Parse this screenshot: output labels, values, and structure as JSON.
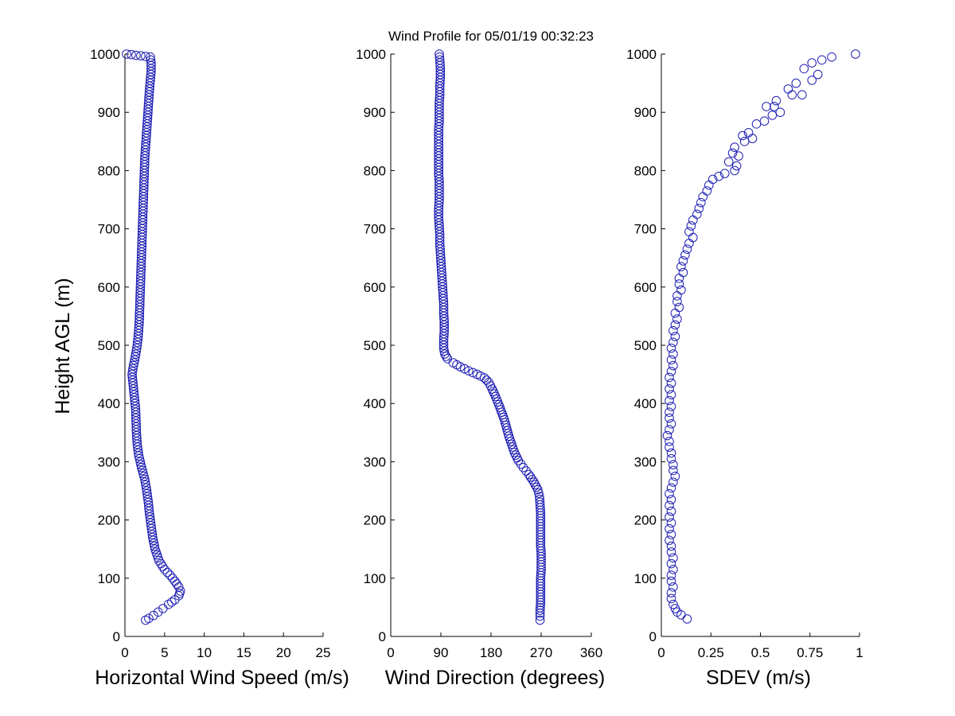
{
  "figure_title": "Wind Profile for  05/01/19 00:32:23",
  "ylabel": "Height AGL (m)",
  "colors": {
    "marker": "#1f1fb4",
    "axis": "#000000"
  },
  "chart_data": [
    {
      "type": "scatter",
      "xlabel": "Horizontal Wind Speed (m/s)",
      "ylabel": "Height AGL (m)",
      "xlim": [
        0,
        25
      ],
      "ylim": [
        0,
        1000
      ],
      "xticks": [
        "0",
        "5",
        "10",
        "15",
        "20",
        "25"
      ],
      "yticks": [
        "0",
        "100",
        "200",
        "300",
        "400",
        "500",
        "600",
        "700",
        "800",
        "900",
        "1000"
      ],
      "grid": false,
      "marker": "open-circle",
      "profile": [
        [
          0.2,
          1000
        ],
        [
          3.2,
          995
        ],
        [
          3.3,
          985
        ],
        [
          3.3,
          970
        ],
        [
          3.2,
          955
        ],
        [
          3.1,
          940
        ],
        [
          3.0,
          920
        ],
        [
          2.9,
          900
        ],
        [
          2.8,
          880
        ],
        [
          2.7,
          860
        ],
        [
          2.6,
          840
        ],
        [
          2.5,
          820
        ],
        [
          2.45,
          800
        ],
        [
          2.4,
          780
        ],
        [
          2.35,
          760
        ],
        [
          2.3,
          740
        ],
        [
          2.25,
          720
        ],
        [
          2.2,
          700
        ],
        [
          2.15,
          680
        ],
        [
          2.1,
          660
        ],
        [
          2.05,
          640
        ],
        [
          2.0,
          620
        ],
        [
          1.95,
          600
        ],
        [
          1.9,
          580
        ],
        [
          1.85,
          560
        ],
        [
          1.8,
          540
        ],
        [
          1.7,
          520
        ],
        [
          1.55,
          500
        ],
        [
          1.3,
          480
        ],
        [
          1.0,
          460
        ],
        [
          0.9,
          450
        ],
        [
          1.05,
          430
        ],
        [
          1.2,
          410
        ],
        [
          1.35,
          390
        ],
        [
          1.4,
          370
        ],
        [
          1.45,
          350
        ],
        [
          1.55,
          330
        ],
        [
          1.75,
          310
        ],
        [
          2.1,
          290
        ],
        [
          2.5,
          270
        ],
        [
          2.75,
          250
        ],
        [
          2.95,
          230
        ],
        [
          3.1,
          210
        ],
        [
          3.3,
          190
        ],
        [
          3.5,
          170
        ],
        [
          3.8,
          150
        ],
        [
          4.3,
          130
        ],
        [
          5.0,
          115
        ],
        [
          5.7,
          105
        ],
        [
          6.3,
          95
        ],
        [
          6.8,
          85
        ],
        [
          7.0,
          78
        ],
        [
          6.8,
          70
        ],
        [
          6.3,
          63
        ],
        [
          5.5,
          55
        ],
        [
          4.8,
          48
        ],
        [
          4.2,
          42
        ],
        [
          3.6,
          36
        ],
        [
          3.0,
          31
        ],
        [
          2.6,
          28
        ]
      ]
    },
    {
      "type": "scatter",
      "xlabel": "Wind Direction (degrees)",
      "xlim": [
        0,
        360
      ],
      "ylim": [
        0,
        1000
      ],
      "xticks": [
        "0",
        "90",
        "180",
        "270",
        "360"
      ],
      "yticks": [
        "0",
        "100",
        "200",
        "300",
        "400",
        "500",
        "600",
        "700",
        "800",
        "900",
        "1000"
      ],
      "grid": false,
      "marker": "open-circle",
      "profile": [
        [
          87,
          1000
        ],
        [
          88,
          990
        ],
        [
          89,
          975
        ],
        [
          89,
          960
        ],
        [
          88,
          945
        ],
        [
          88,
          930
        ],
        [
          87,
          915
        ],
        [
          87,
          900
        ],
        [
          87,
          885
        ],
        [
          86,
          870
        ],
        [
          86,
          855
        ],
        [
          86,
          840
        ],
        [
          86,
          825
        ],
        [
          86,
          810
        ],
        [
          86,
          795
        ],
        [
          87,
          780
        ],
        [
          87,
          765
        ],
        [
          87,
          750
        ],
        [
          86,
          735
        ],
        [
          86,
          720
        ],
        [
          87,
          705
        ],
        [
          88,
          690
        ],
        [
          88,
          675
        ],
        [
          89,
          660
        ],
        [
          90,
          645
        ],
        [
          91,
          630
        ],
        [
          92,
          615
        ],
        [
          93,
          600
        ],
        [
          94,
          585
        ],
        [
          95,
          570
        ],
        [
          95,
          555
        ],
        [
          96,
          540
        ],
        [
          96,
          525
        ],
        [
          95,
          510
        ],
        [
          95,
          495
        ],
        [
          97,
          485
        ],
        [
          102,
          477
        ],
        [
          112,
          470
        ],
        [
          125,
          463
        ],
        [
          140,
          456
        ],
        [
          155,
          450
        ],
        [
          168,
          444
        ],
        [
          176,
          436
        ],
        [
          182,
          425
        ],
        [
          188,
          412
        ],
        [
          194,
          398
        ],
        [
          199,
          385
        ],
        [
          204,
          372
        ],
        [
          208,
          358
        ],
        [
          212,
          344
        ],
        [
          217,
          330
        ],
        [
          222,
          316
        ],
        [
          229,
          302
        ],
        [
          238,
          290
        ],
        [
          248,
          278
        ],
        [
          257,
          265
        ],
        [
          264,
          252
        ],
        [
          267,
          240
        ],
        [
          268,
          226
        ],
        [
          269,
          212
        ],
        [
          269,
          198
        ],
        [
          269,
          184
        ],
        [
          269,
          170
        ],
        [
          269,
          156
        ],
        [
          270,
          142
        ],
        [
          270,
          128
        ],
        [
          270,
          114
        ],
        [
          269,
          100
        ],
        [
          269,
          86
        ],
        [
          269,
          72
        ],
        [
          269,
          58
        ],
        [
          268,
          45
        ],
        [
          268,
          35
        ],
        [
          268,
          28
        ]
      ]
    },
    {
      "type": "scatter",
      "xlabel": "SDEV  (m/s)",
      "xlim": [
        0,
        1
      ],
      "ylim": [
        0,
        1000
      ],
      "xticks": [
        "0",
        "0.25",
        "0.5",
        "0.75",
        "1"
      ],
      "yticks": [
        "0",
        "100",
        "200",
        "300",
        "400",
        "500",
        "600",
        "700",
        "800",
        "900",
        "1000"
      ],
      "grid": false,
      "marker": "open-circle",
      "points": [
        [
          0.98,
          1000
        ],
        [
          0.86,
          995
        ],
        [
          0.81,
          990
        ],
        [
          0.76,
          985
        ],
        [
          0.72,
          975
        ],
        [
          0.79,
          965
        ],
        [
          0.76,
          955
        ],
        [
          0.68,
          950
        ],
        [
          0.64,
          940
        ],
        [
          0.66,
          930
        ],
        [
          0.71,
          930
        ],
        [
          0.58,
          920
        ],
        [
          0.53,
          910
        ],
        [
          0.57,
          910
        ],
        [
          0.6,
          900
        ],
        [
          0.56,
          895
        ],
        [
          0.52,
          885
        ],
        [
          0.48,
          880
        ],
        [
          0.44,
          865
        ],
        [
          0.41,
          860
        ],
        [
          0.46,
          855
        ],
        [
          0.42,
          850
        ],
        [
          0.37,
          840
        ],
        [
          0.36,
          830
        ],
        [
          0.39,
          825
        ],
        [
          0.34,
          815
        ],
        [
          0.38,
          808
        ],
        [
          0.37,
          800
        ],
        [
          0.32,
          795
        ],
        [
          0.29,
          790
        ],
        [
          0.26,
          785
        ],
        [
          0.24,
          775
        ],
        [
          0.23,
          765
        ],
        [
          0.21,
          755
        ],
        [
          0.2,
          745
        ],
        [
          0.19,
          735
        ],
        [
          0.18,
          725
        ],
        [
          0.16,
          715
        ],
        [
          0.15,
          705
        ],
        [
          0.14,
          695
        ],
        [
          0.16,
          685
        ],
        [
          0.14,
          675
        ],
        [
          0.13,
          665
        ],
        [
          0.12,
          655
        ],
        [
          0.11,
          645
        ],
        [
          0.1,
          635
        ],
        [
          0.11,
          625
        ],
        [
          0.09,
          615
        ],
        [
          0.09,
          605
        ],
        [
          0.1,
          595
        ],
        [
          0.08,
          585
        ],
        [
          0.08,
          575
        ],
        [
          0.09,
          565
        ],
        [
          0.07,
          555
        ],
        [
          0.08,
          545
        ],
        [
          0.07,
          535
        ],
        [
          0.06,
          525
        ],
        [
          0.07,
          515
        ],
        [
          0.06,
          505
        ],
        [
          0.05,
          495
        ],
        [
          0.06,
          485
        ],
        [
          0.05,
          475
        ],
        [
          0.06,
          465
        ],
        [
          0.05,
          455
        ],
        [
          0.04,
          445
        ],
        [
          0.05,
          435
        ],
        [
          0.04,
          425
        ],
        [
          0.05,
          415
        ],
        [
          0.04,
          405
        ],
        [
          0.05,
          395
        ],
        [
          0.04,
          385
        ],
        [
          0.04,
          375
        ],
        [
          0.05,
          365
        ],
        [
          0.04,
          355
        ],
        [
          0.03,
          345
        ],
        [
          0.04,
          335
        ],
        [
          0.04,
          325
        ],
        [
          0.05,
          315
        ],
        [
          0.05,
          305
        ],
        [
          0.06,
          295
        ],
        [
          0.06,
          285
        ],
        [
          0.07,
          275
        ],
        [
          0.06,
          265
        ],
        [
          0.05,
          255
        ],
        [
          0.04,
          245
        ],
        [
          0.05,
          235
        ],
        [
          0.04,
          225
        ],
        [
          0.05,
          215
        ],
        [
          0.04,
          205
        ],
        [
          0.05,
          195
        ],
        [
          0.04,
          185
        ],
        [
          0.05,
          175
        ],
        [
          0.04,
          165
        ],
        [
          0.05,
          155
        ],
        [
          0.05,
          145
        ],
        [
          0.06,
          135
        ],
        [
          0.05,
          125
        ],
        [
          0.06,
          115
        ],
        [
          0.05,
          105
        ],
        [
          0.05,
          95
        ],
        [
          0.06,
          85
        ],
        [
          0.05,
          75
        ],
        [
          0.05,
          65
        ],
        [
          0.06,
          55
        ],
        [
          0.07,
          48
        ],
        [
          0.08,
          42
        ],
        [
          0.1,
          37
        ],
        [
          0.13,
          30
        ]
      ]
    }
  ]
}
